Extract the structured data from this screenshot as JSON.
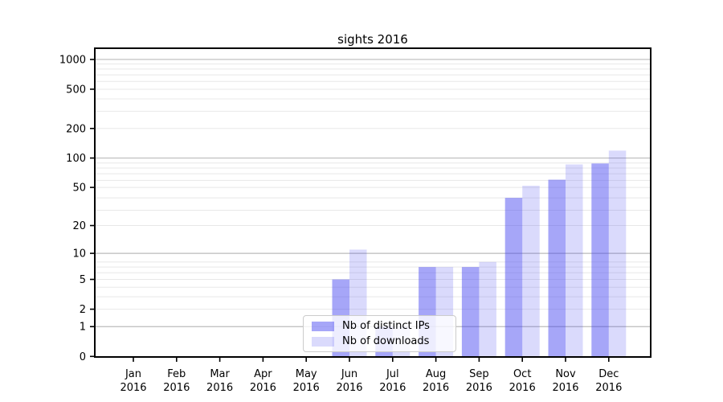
{
  "title": "sights 2016",
  "chart_data": {
    "type": "bar",
    "title": "sights 2016",
    "months": [
      "Jan",
      "Feb",
      "Mar",
      "Apr",
      "May",
      "Jun",
      "Jul",
      "Aug",
      "Sep",
      "Oct",
      "Nov",
      "Dec"
    ],
    "year": "2016",
    "series": [
      {
        "name": "Nb of distinct IPs",
        "color": "#4646f0",
        "alpha": 0.48,
        "values": [
          0,
          0,
          0,
          0,
          0,
          5,
          1,
          7,
          7,
          39,
          60,
          88
        ]
      },
      {
        "name": "Nb of downloads",
        "color": "#4646f0",
        "alpha": 0.2,
        "values": [
          0,
          0,
          0,
          0,
          0,
          11,
          1,
          7,
          8,
          52,
          86,
          119
        ]
      }
    ],
    "yscale": "log1p",
    "yticks": [
      0,
      1,
      2,
      5,
      10,
      20,
      50,
      100,
      200,
      500,
      1000
    ],
    "ylim": [
      0,
      1300
    ],
    "grid": true,
    "legend_position": "lower center"
  },
  "colors": {
    "background": "#ffffff",
    "spine": "#000000",
    "grid_decade": "#bbbbbb",
    "grid_light": "#e8e8e8",
    "tick_text": "#000000"
  }
}
